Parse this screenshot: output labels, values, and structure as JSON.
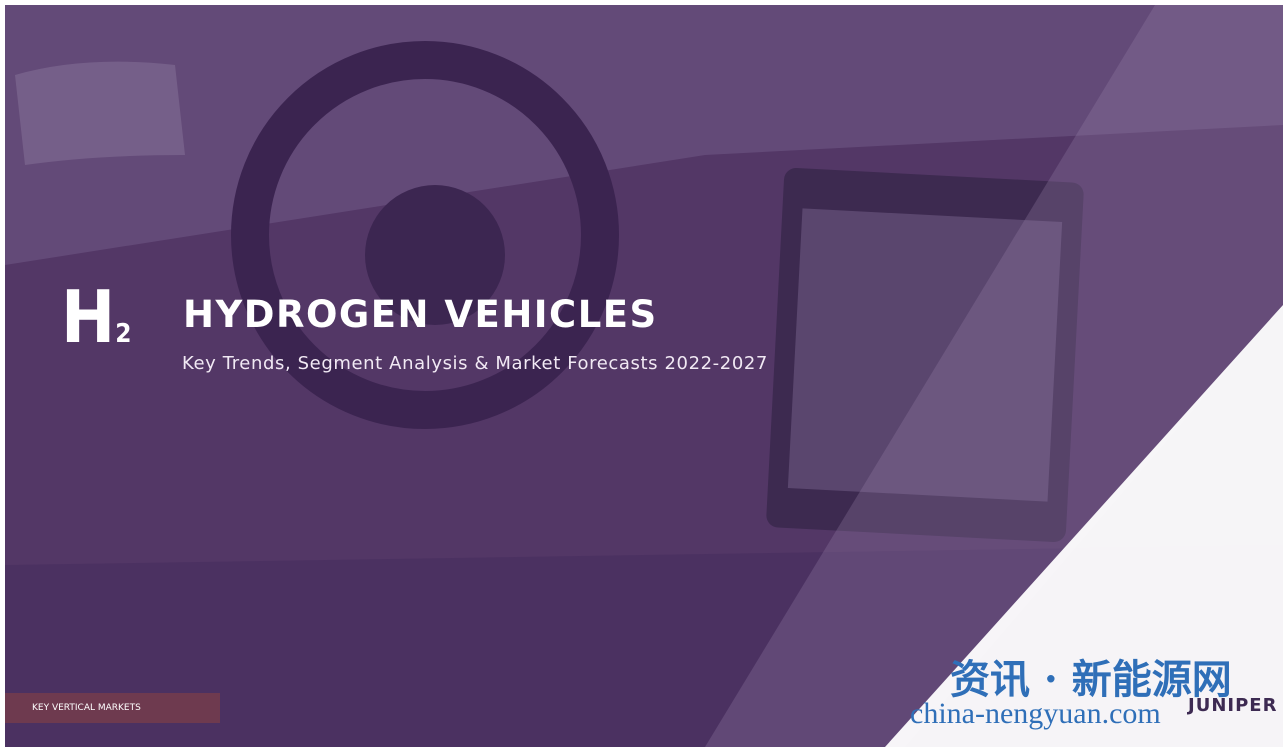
{
  "cover": {
    "icon": {
      "letter": "H",
      "subscript": "2"
    },
    "title": "HYDROGEN VEHICLES",
    "subtitle": "Key Trends, Segment Analysis & Market Forecasts 2022-2027",
    "section_tag": "KEY VERTICAL MARKETS",
    "logo": "JUNIPER",
    "watermark": {
      "line1": "资讯 · 新能源网",
      "line2": "china-nengyuan.com"
    }
  }
}
